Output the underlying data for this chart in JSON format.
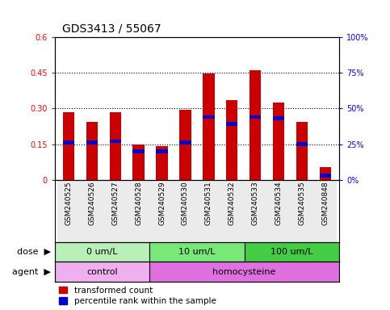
{
  "title": "GDS3413 / 55067",
  "samples": [
    "GSM240525",
    "GSM240526",
    "GSM240527",
    "GSM240528",
    "GSM240529",
    "GSM240530",
    "GSM240531",
    "GSM240532",
    "GSM240533",
    "GSM240534",
    "GSM240535",
    "GSM240848"
  ],
  "transformed_count": [
    0.285,
    0.245,
    0.285,
    0.148,
    0.143,
    0.296,
    0.447,
    0.335,
    0.462,
    0.325,
    0.245,
    0.055
  ],
  "percentile_pct": [
    26,
    26,
    27,
    20,
    20,
    26,
    44,
    39,
    44,
    43,
    25,
    3
  ],
  "ylim_left": [
    0,
    0.6
  ],
  "ylim_right": [
    0,
    100
  ],
  "yticks_left": [
    0,
    0.15,
    0.3,
    0.45,
    0.6
  ],
  "yticks_right": [
    0,
    25,
    50,
    75,
    100
  ],
  "ytick_labels_left": [
    "0",
    "0.15",
    "0.30",
    "0.45",
    "0.6"
  ],
  "ytick_labels_right": [
    "0%",
    "25%",
    "50%",
    "75%",
    "100%"
  ],
  "hlines": [
    0.15,
    0.3,
    0.45
  ],
  "dose_groups": [
    {
      "label": "0 um/L",
      "start": 0,
      "end": 4
    },
    {
      "label": "10 um/L",
      "start": 4,
      "end": 8
    },
    {
      "label": "100 um/L",
      "start": 8,
      "end": 12
    }
  ],
  "dose_colors": [
    "#b8f0b8",
    "#78e878",
    "#44cc44"
  ],
  "agent_groups": [
    {
      "label": "control",
      "start": 0,
      "end": 4
    },
    {
      "label": "homocysteine",
      "start": 4,
      "end": 12
    }
  ],
  "agent_colors": [
    "#f0b0f0",
    "#e070e0"
  ],
  "bar_color_red": "#cc0000",
  "bar_color_blue": "#0000cc",
  "bar_width": 0.5,
  "bg_color": "#ffffff",
  "plot_bg_color": "#ffffff",
  "title_fontsize": 10,
  "tick_fontsize": 7,
  "label_fontsize": 8,
  "legend_fontsize": 7.5,
  "sample_fontsize": 6.5
}
